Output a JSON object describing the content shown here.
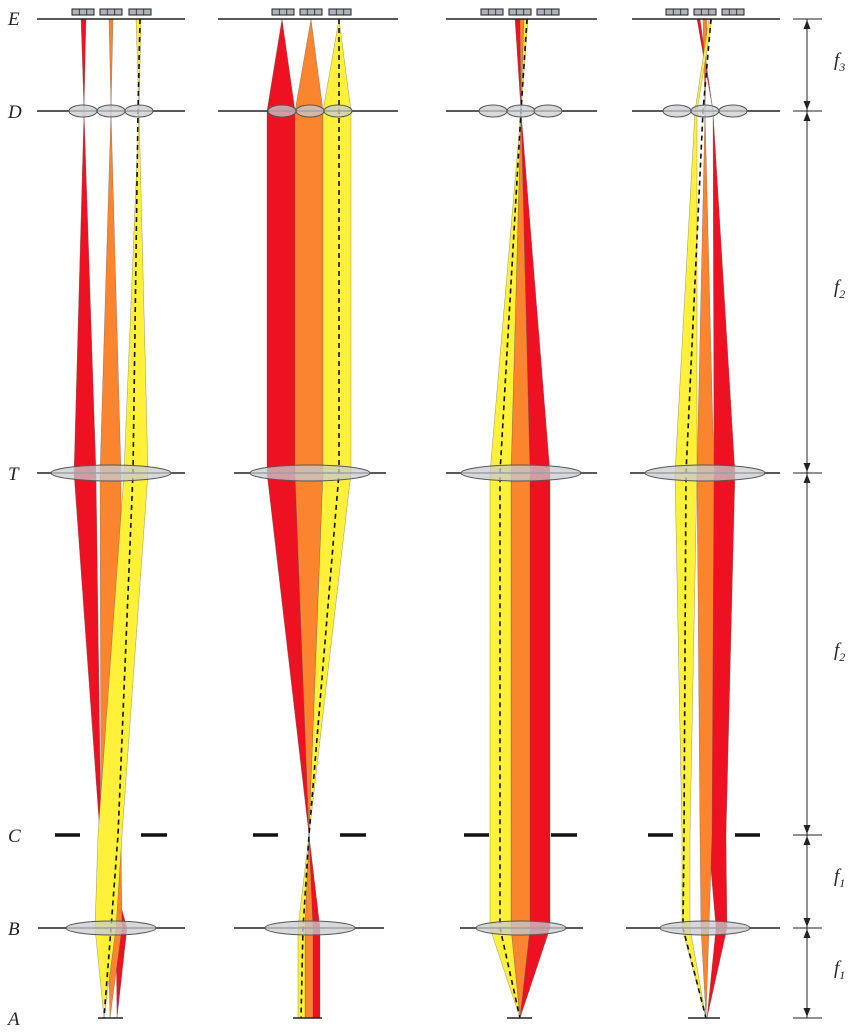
{
  "planes": [
    {
      "label": "E",
      "subscript": ""
    },
    {
      "label": "D",
      "subscript": ""
    },
    {
      "label": "T",
      "subscript": ""
    },
    {
      "label": "C",
      "subscript": ""
    },
    {
      "label": "B",
      "subscript": ""
    },
    {
      "label": "A",
      "subscript": ""
    }
  ],
  "distances": [
    {
      "label": "f",
      "subscript": "3"
    },
    {
      "label": "f",
      "subscript": "2"
    },
    {
      "label": "f",
      "subscript": "2"
    },
    {
      "label": "f",
      "subscript": "1"
    },
    {
      "label": "f",
      "subscript": "1"
    }
  ],
  "colors": {
    "red": "#ee1122",
    "orange": "#fb842e",
    "yellow": "#fff03a",
    "lens": "#c8cbd0",
    "line": "#222222"
  },
  "icons": {
    "detector": "detector-array-icon",
    "lens": "lens-shape",
    "stop": "aperture-stop"
  }
}
